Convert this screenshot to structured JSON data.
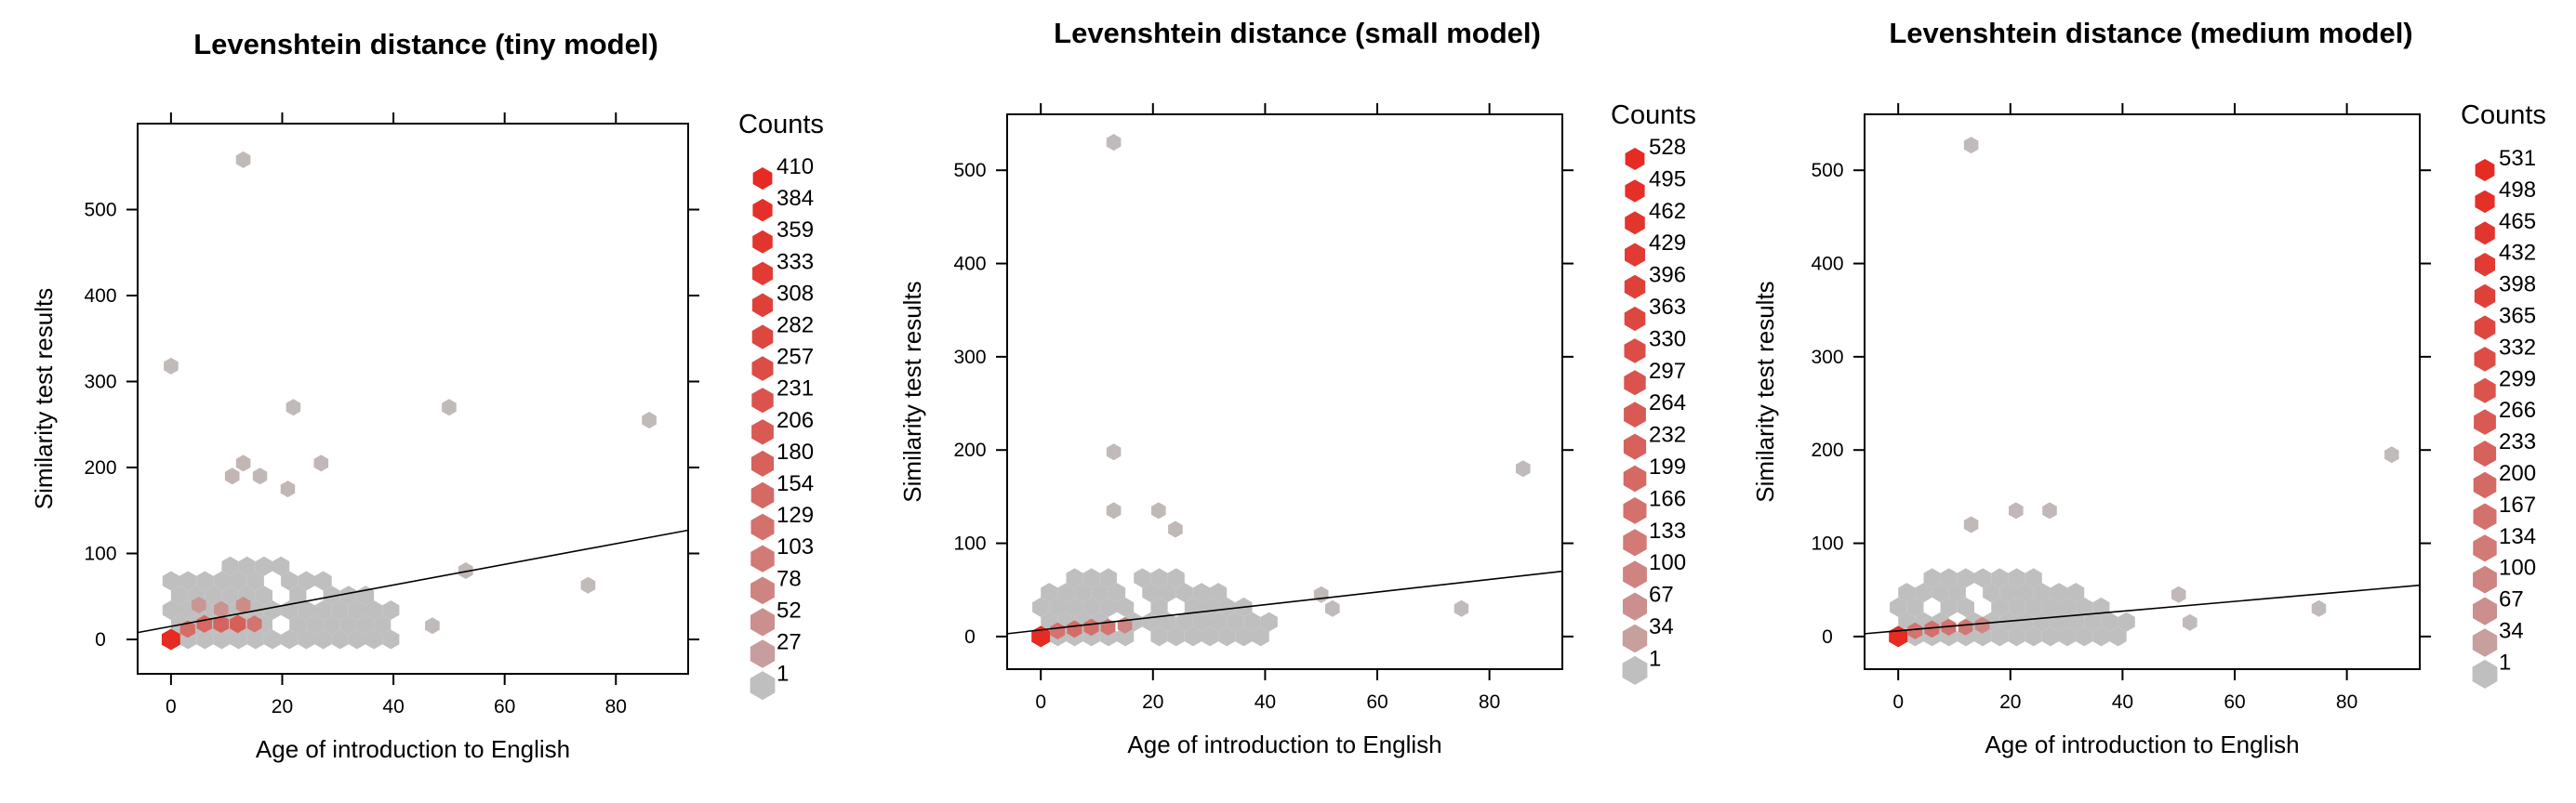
{
  "chart_data": [
    {
      "type": "scatter",
      "subtype": "hexbin",
      "title": "Levenshtein distance (tiny model)",
      "xlabel": "Age of introduction to English",
      "ylabel": "Similarity test results",
      "x_ticks": [
        0,
        20,
        40,
        60,
        80
      ],
      "y_ticks": [
        0,
        100,
        200,
        300,
        400,
        500
      ],
      "xlim": [
        -6,
        93
      ],
      "ylim": [
        -40,
        600
      ],
      "legend_title": "Counts",
      "legend_values": [
        410,
        384,
        359,
        333,
        308,
        282,
        257,
        231,
        206,
        180,
        154,
        129,
        103,
        78,
        52,
        27,
        1
      ],
      "regression_line": {
        "x": [
          -6,
          93
        ],
        "y": [
          8,
          127
        ]
      },
      "points": [
        {
          "x": 0,
          "y": 0,
          "count": 410
        },
        {
          "x": 3,
          "y": 12,
          "count": 140
        },
        {
          "x": 6,
          "y": 18,
          "count": 160
        },
        {
          "x": 9,
          "y": 18,
          "count": 170
        },
        {
          "x": 12,
          "y": 18,
          "count": 190
        },
        {
          "x": 15,
          "y": 18,
          "count": 120
        },
        {
          "x": 13,
          "y": 40,
          "count": 60
        },
        {
          "x": 5,
          "y": 40,
          "count": 40
        },
        {
          "x": 9,
          "y": 35,
          "count": 45
        },
        {
          "x": 13,
          "y": 558,
          "count": 1
        },
        {
          "x": 0,
          "y": 318,
          "count": 1
        },
        {
          "x": 22,
          "y": 270,
          "count": 1
        },
        {
          "x": 50,
          "y": 270,
          "count": 1
        },
        {
          "x": 86,
          "y": 255,
          "count": 1
        },
        {
          "x": 75,
          "y": 63,
          "count": 1
        },
        {
          "x": 53,
          "y": 80,
          "count": 2
        },
        {
          "x": 47,
          "y": 16,
          "count": 1
        },
        {
          "x": 13,
          "y": 205,
          "count": 3
        },
        {
          "x": 27,
          "y": 205,
          "count": 2
        },
        {
          "x": 21,
          "y": 175,
          "count": 2
        },
        {
          "x": 11,
          "y": 190,
          "count": 3
        },
        {
          "x": 16,
          "y": 190,
          "count": 2
        }
      ]
    },
    {
      "type": "scatter",
      "subtype": "hexbin",
      "title": "Levenshtein distance (small model)",
      "xlabel": "Age of introduction to English",
      "ylabel": "Similarity test results",
      "x_ticks": [
        0,
        20,
        40,
        60,
        80
      ],
      "y_ticks": [
        0,
        100,
        200,
        300,
        400,
        500
      ],
      "xlim": [
        -6,
        93
      ],
      "ylim": [
        -35,
        560
      ],
      "legend_title": "Counts",
      "legend_values": [
        528,
        495,
        462,
        429,
        396,
        363,
        330,
        297,
        264,
        232,
        199,
        166,
        133,
        100,
        67,
        34,
        1
      ],
      "regression_line": {
        "x": [
          -6,
          93
        ],
        "y": [
          3,
          70
        ]
      },
      "points": [
        {
          "x": 0,
          "y": 0,
          "count": 528
        },
        {
          "x": 3,
          "y": 6,
          "count": 160
        },
        {
          "x": 6,
          "y": 8,
          "count": 180
        },
        {
          "x": 9,
          "y": 10,
          "count": 170
        },
        {
          "x": 12,
          "y": 10,
          "count": 150
        },
        {
          "x": 15,
          "y": 12,
          "count": 100
        },
        {
          "x": 13,
          "y": 530,
          "count": 1
        },
        {
          "x": 13,
          "y": 198,
          "count": 1
        },
        {
          "x": 86,
          "y": 180,
          "count": 1
        },
        {
          "x": 75,
          "y": 30,
          "count": 1
        },
        {
          "x": 50,
          "y": 45,
          "count": 2
        },
        {
          "x": 52,
          "y": 30,
          "count": 1
        },
        {
          "x": 21,
          "y": 135,
          "count": 2
        },
        {
          "x": 13,
          "y": 135,
          "count": 2
        },
        {
          "x": 24,
          "y": 115,
          "count": 2
        }
      ]
    },
    {
      "type": "scatter",
      "subtype": "hexbin",
      "title": "Levenshtein distance (medium model)",
      "xlabel": "Age of introduction to English",
      "ylabel": "Similarity test results",
      "x_ticks": [
        0,
        20,
        40,
        60,
        80
      ],
      "y_ticks": [
        0,
        100,
        200,
        300,
        400,
        500
      ],
      "xlim": [
        -6,
        93
      ],
      "ylim": [
        -35,
        560
      ],
      "legend_title": "Counts",
      "legend_values": [
        531,
        498,
        465,
        432,
        398,
        365,
        332,
        299,
        266,
        233,
        200,
        167,
        134,
        100,
        67,
        34,
        1
      ],
      "regression_line": {
        "x": [
          -6,
          93
        ],
        "y": [
          3,
          55
        ]
      },
      "points": [
        {
          "x": 0,
          "y": 0,
          "count": 531
        },
        {
          "x": 3,
          "y": 6,
          "count": 150
        },
        {
          "x": 6,
          "y": 8,
          "count": 170
        },
        {
          "x": 9,
          "y": 10,
          "count": 160
        },
        {
          "x": 12,
          "y": 10,
          "count": 140
        },
        {
          "x": 15,
          "y": 12,
          "count": 90
        },
        {
          "x": 13,
          "y": 527,
          "count": 1
        },
        {
          "x": 88,
          "y": 195,
          "count": 1
        },
        {
          "x": 75,
          "y": 30,
          "count": 1
        },
        {
          "x": 50,
          "y": 45,
          "count": 2
        },
        {
          "x": 52,
          "y": 15,
          "count": 1
        },
        {
          "x": 21,
          "y": 135,
          "count": 2
        },
        {
          "x": 27,
          "y": 135,
          "count": 2
        },
        {
          "x": 13,
          "y": 120,
          "count": 2
        }
      ]
    }
  ]
}
